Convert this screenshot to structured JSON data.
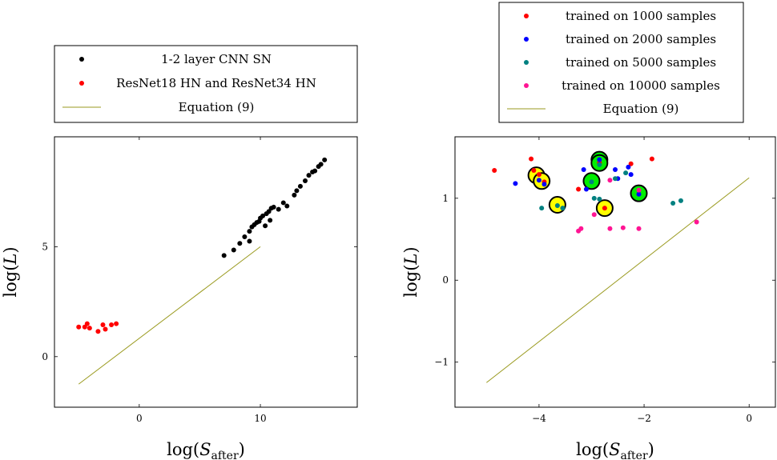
{
  "chart_data": [
    {
      "type": "scatter",
      "xlabel": "log(S_after)",
      "ylabel": "log(L)",
      "xlim": [
        -7,
        18
      ],
      "ylim": [
        -2.3,
        10
      ],
      "xticks": [
        0,
        10
      ],
      "yticks": [
        0,
        5
      ],
      "legend_position": "above",
      "series": [
        {
          "name": "1-2 layer CNN SN",
          "color": "#000000",
          "kind": "points",
          "points": [
            [
              7.0,
              4.6
            ],
            [
              7.8,
              4.85
            ],
            [
              8.3,
              5.15
            ],
            [
              8.7,
              5.45
            ],
            [
              9.1,
              5.25
            ],
            [
              9.1,
              5.7
            ],
            [
              9.3,
              5.9
            ],
            [
              9.5,
              6.0
            ],
            [
              9.7,
              6.1
            ],
            [
              9.9,
              6.15
            ],
            [
              10.0,
              6.3
            ],
            [
              10.2,
              6.4
            ],
            [
              10.4,
              5.95
            ],
            [
              10.5,
              6.5
            ],
            [
              10.7,
              6.6
            ],
            [
              10.8,
              6.2
            ],
            [
              10.9,
              6.75
            ],
            [
              11.1,
              6.8
            ],
            [
              11.5,
              6.7
            ],
            [
              11.9,
              7.0
            ],
            [
              12.2,
              6.85
            ],
            [
              12.8,
              7.35
            ],
            [
              13.0,
              7.55
            ],
            [
              13.3,
              7.75
            ],
            [
              13.7,
              8.0
            ],
            [
              14.0,
              8.25
            ],
            [
              14.3,
              8.4
            ],
            [
              14.5,
              8.45
            ],
            [
              14.8,
              8.65
            ],
            [
              15.0,
              8.75
            ],
            [
              15.3,
              8.95
            ]
          ]
        },
        {
          "name": "ResNet18 HN and ResNet34 HN",
          "color": "#ff0000",
          "kind": "points",
          "points": [
            [
              -5.0,
              1.35
            ],
            [
              -4.5,
              1.35
            ],
            [
              -4.3,
              1.5
            ],
            [
              -4.1,
              1.3
            ],
            [
              -3.4,
              1.15
            ],
            [
              -3.0,
              1.45
            ],
            [
              -2.8,
              1.25
            ],
            [
              -2.3,
              1.45
            ],
            [
              -1.9,
              1.5
            ]
          ]
        },
        {
          "name": "Equation (9)",
          "color": "#9a9a1f",
          "kind": "line",
          "points": [
            [
              -5.0,
              -1.25
            ],
            [
              10.0,
              5.0
            ]
          ]
        }
      ]
    },
    {
      "type": "scatter",
      "xlabel": "log(S_after)",
      "ylabel": "log(L)",
      "xlim": [
        -5.6,
        0.5
      ],
      "ylim": [
        -1.55,
        1.75
      ],
      "xticks": [
        -4,
        -2,
        0
      ],
      "xtick_labels": [
        "−4",
        "−2",
        "0"
      ],
      "yticks": [
        -1,
        0,
        1
      ],
      "ytick_labels": [
        "−1",
        "0",
        "1"
      ],
      "legend_position": "above",
      "series": [
        {
          "name": "trained on 1000 samples",
          "color": "#ff0000",
          "kind": "points",
          "points": [
            [
              -4.85,
              1.34
            ],
            [
              -4.15,
              1.48
            ],
            [
              -4.1,
              1.34
            ],
            [
              -4.0,
              1.29
            ],
            [
              -3.9,
              1.2
            ],
            [
              -3.25,
              1.11
            ],
            [
              -2.85,
              1.43
            ],
            [
              -2.25,
              1.42
            ],
            [
              -1.85,
              1.48
            ],
            [
              -2.75,
              0.88
            ]
          ]
        },
        {
          "name": "trained on 2000 samples",
          "color": "#0000ff",
          "kind": "points",
          "points": [
            [
              -4.45,
              1.18
            ],
            [
              -4.0,
              1.22
            ],
            [
              -3.9,
              1.17
            ],
            [
              -3.15,
              1.35
            ],
            [
              -3.1,
              1.11
            ],
            [
              -2.85,
              1.47
            ],
            [
              -2.55,
              1.35
            ],
            [
              -2.5,
              1.24
            ],
            [
              -2.3,
              1.38
            ],
            [
              -2.25,
              1.29
            ],
            [
              -2.1,
              1.05
            ]
          ]
        },
        {
          "name": "trained on 5000 samples",
          "color": "#008080",
          "kind": "points",
          "points": [
            [
              -3.65,
              0.91
            ],
            [
              -3.55,
              0.88
            ],
            [
              -3.0,
              1.2
            ],
            [
              -2.95,
              1.0
            ],
            [
              -2.85,
              0.99
            ],
            [
              -2.85,
              1.41
            ],
            [
              -2.55,
              1.24
            ],
            [
              -2.35,
              1.31
            ],
            [
              -1.45,
              0.94
            ],
            [
              -1.3,
              0.97
            ],
            [
              -3.95,
              0.88
            ]
          ]
        },
        {
          "name": "trained on 10000 samples",
          "color": "#ff1493",
          "kind": "points",
          "points": [
            [
              -3.25,
              0.6
            ],
            [
              -3.2,
              0.63
            ],
            [
              -2.95,
              0.8
            ],
            [
              -2.65,
              0.63
            ],
            [
              -2.4,
              0.64
            ],
            [
              -2.1,
              0.63
            ],
            [
              -2.1,
              1.1
            ],
            [
              -2.65,
              1.22
            ],
            [
              -1.0,
              0.71
            ]
          ]
        },
        {
          "name": "Equation (9)",
          "color": "#9a9a1f",
          "kind": "line",
          "points": [
            [
              -5.0,
              -1.25
            ],
            [
              0.0,
              1.25
            ]
          ]
        },
        {
          "name": "",
          "color": "#ffff00",
          "kind": "highlight",
          "points": [
            [
              -4.05,
              1.28
            ],
            [
              -3.95,
              1.21
            ],
            [
              -3.65,
              0.92
            ],
            [
              -2.75,
              0.88
            ]
          ]
        },
        {
          "name": "",
          "color": "#00ee00",
          "kind": "highlight",
          "points": [
            [
              -2.85,
              1.47
            ],
            [
              -2.85,
              1.43
            ],
            [
              -3.0,
              1.21
            ],
            [
              -2.1,
              1.06
            ]
          ]
        }
      ]
    }
  ]
}
